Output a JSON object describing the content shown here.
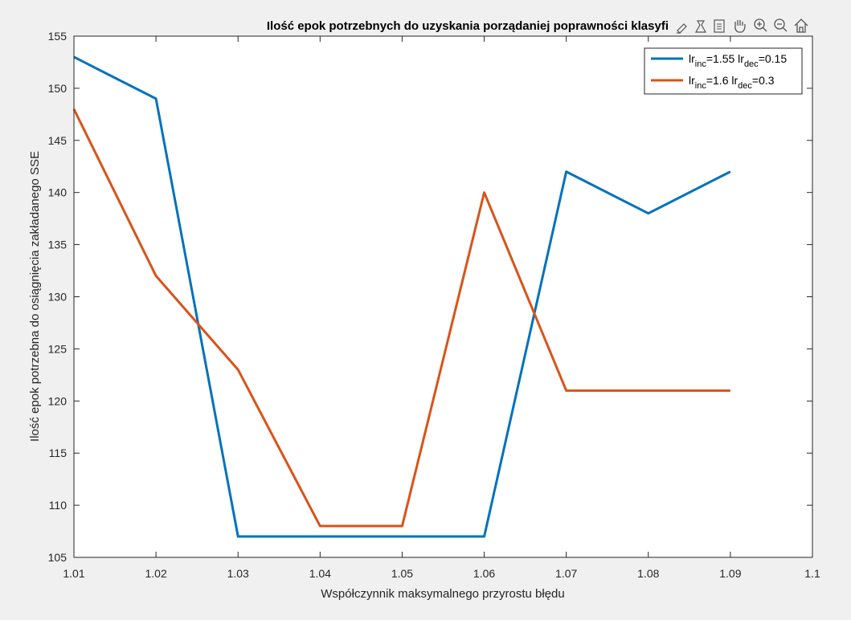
{
  "toolbar": {
    "icons": [
      "brush-icon",
      "data-tip-icon",
      "export-icon",
      "pan-hand-icon",
      "zoom-in-icon",
      "zoom-out-icon",
      "home-icon"
    ]
  },
  "chart_data": {
    "type": "line",
    "title": "Ilość epok potrzebnych do uzyskania porządaniej poprawności klasyfi",
    "xlabel": "Współczynnik maksymalnego przyrostu błędu",
    "ylabel": "Ilość epok potrzebna do osiągnięcia zakładanego SSE",
    "xlim": [
      1.01,
      1.1
    ],
    "ylim": [
      105,
      155
    ],
    "x_ticks": [
      "1.01",
      "1.02",
      "1.03",
      "1.04",
      "1.05",
      "1.06",
      "1.07",
      "1.08",
      "1.09",
      "1.1"
    ],
    "y_ticks": [
      "105",
      "110",
      "115",
      "120",
      "125",
      "130",
      "135",
      "140",
      "145",
      "150",
      "155"
    ],
    "x": [
      1.01,
      1.02,
      1.03,
      1.04,
      1.05,
      1.06,
      1.07,
      1.08,
      1.09
    ],
    "grid": false,
    "legend_position": "top-right",
    "series": [
      {
        "legend": {
          "base1": "lr",
          "sub1": "inc",
          "mid": "=1.55 lr",
          "sub2": "dec",
          "tail": "=0.15"
        },
        "color": "#0072bd",
        "values": [
          153,
          149,
          107,
          107,
          107,
          107,
          142,
          138,
          142
        ]
      },
      {
        "legend": {
          "base1": "lr",
          "sub1": "inc",
          "mid": "=1.6 lr",
          "sub2": "dec",
          "tail": "=0.3"
        },
        "color": "#d95319",
        "values": [
          148,
          132,
          123,
          108,
          108,
          140,
          121,
          121,
          121
        ]
      }
    ]
  }
}
